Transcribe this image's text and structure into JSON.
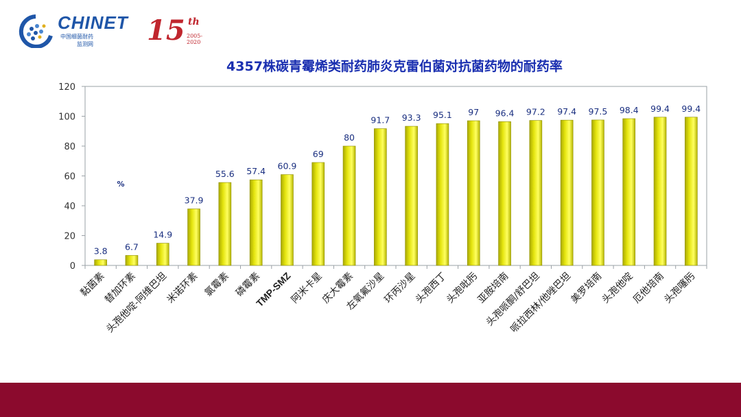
{
  "header": {
    "logo_name": "CHINET",
    "logo_sub_1": "中国细菌耐药",
    "logo_sub_2": "监测网",
    "anniversary_mark": "15",
    "anniversary_suffix": "th",
    "anniversary_years": "2005-2020"
  },
  "colors": {
    "bar_fill": "#e5e50f",
    "bar_edge": "#8c8c00",
    "title_color": "#1a2fb0",
    "footer_band": "#8b0a2d"
  },
  "chart_data": {
    "type": "bar",
    "title": "4357株碳青霉烯类耐药肺炎克雷伯菌对抗菌药物的耐药率",
    "ylabel": "%",
    "xlabel": "",
    "ylim": [
      0,
      120
    ],
    "yticks": [
      0,
      20,
      40,
      60,
      80,
      100,
      120
    ],
    "grid": false,
    "legend": "none",
    "categories": [
      "黏菌素",
      "替加环素",
      "头孢他啶-阿维巴坦",
      "米诺环素",
      "氯霉素",
      "磷霉素",
      "TMP-SMZ",
      "阿米卡星",
      "庆大霉素",
      "左氧氟沙星",
      "环丙沙星",
      "头孢西丁",
      "头孢吡肟",
      "亚胺培南",
      "头孢哌酮/舒巴坦",
      "哌拉西林/他唑巴坦",
      "美罗培南",
      "头孢他啶",
      "厄他培南",
      "头孢噻肟"
    ],
    "values": [
      3.8,
      6.7,
      14.9,
      37.9,
      55.6,
      57.4,
      60.9,
      69,
      80,
      91.7,
      93.3,
      95.1,
      97,
      96.4,
      97.2,
      97.4,
      97.5,
      98.4,
      99.4,
      99.4
    ],
    "value_labels": [
      "3.8",
      "6.7",
      "14.9",
      "37.9",
      "55.6",
      "57.4",
      "60.9",
      "69",
      "80",
      "91.7",
      "93.3",
      "95.1",
      "97",
      "96.4",
      "97.2",
      "97.4",
      "97.5",
      "98.4",
      "99.4",
      "99.4"
    ]
  }
}
